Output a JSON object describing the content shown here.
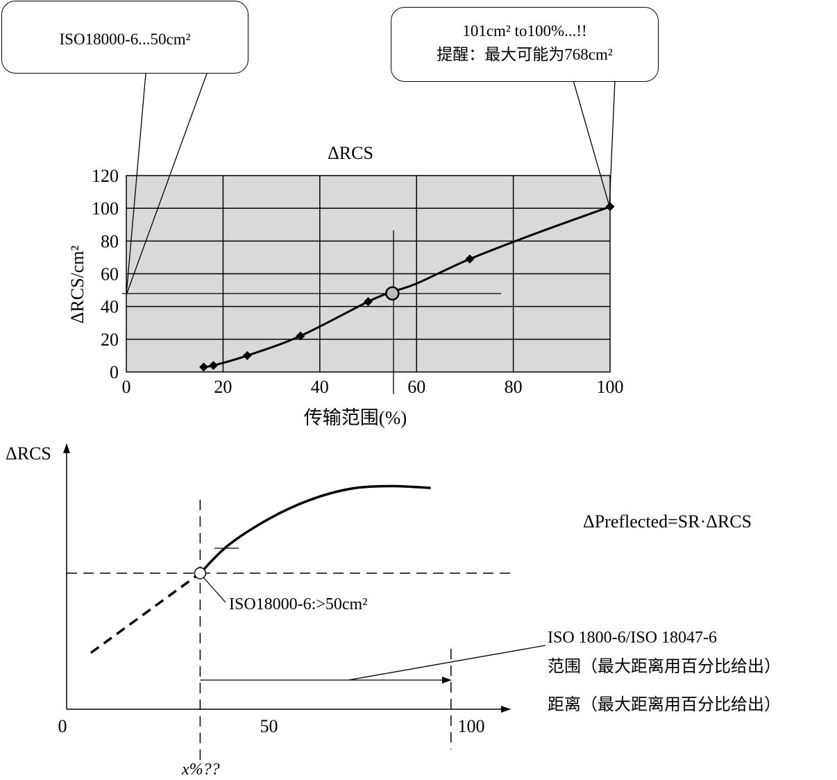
{
  "top_chart": {
    "title": "ΔRCS",
    "ylabel": "ΔRCS/cm²",
    "xlabel": "传输范围(%)",
    "callout_left": "ISO18000-6...50cm²",
    "callout_right_line1": "101cm² to100%...!!",
    "callout_right_line2": "提醒：最大可能为768cm²"
  },
  "bottom_chart": {
    "ylabel": "ΔRCS",
    "formula": "ΔPreflected=SR·ΔRCS",
    "point_label": "ISO18000-6:>50cm²",
    "x_marker_label": "x%??",
    "legend_line1": "ISO 1800-6/ISO 18047-6",
    "legend_line2": "范围（最大距离用百分比给出）",
    "legend_line3": "距离（最大距离用百分比给出）"
  },
  "chart_data": [
    {
      "type": "line",
      "title": "ΔRCS",
      "xlabel": "传输范围(%)",
      "ylabel": "ΔRCS/cm²",
      "xlim": [
        0,
        100
      ],
      "ylim": [
        0,
        120
      ],
      "xticks": [
        0,
        20,
        40,
        60,
        80,
        100
      ],
      "yticks": [
        0,
        20,
        40,
        60,
        80,
        100,
        120
      ],
      "grid": true,
      "series": [
        {
          "x": [
            16,
            18,
            25,
            36,
            50,
            71,
            100
          ],
          "y": [
            3,
            4,
            10,
            22,
            43,
            69,
            101
          ]
        }
      ],
      "curve": {
        "x": [
          16,
          18,
          25,
          36,
          50,
          55,
          60,
          71,
          85,
          100
        ],
        "y": [
          3,
          4,
          10,
          22,
          43,
          49,
          54,
          69,
          85,
          101
        ]
      },
      "highlight_point": {
        "x": 55,
        "y": 48
      },
      "marker_color": "#000000",
      "plot_background": "#d9d9d9"
    },
    {
      "type": "line",
      "xticks": [
        0,
        50,
        100
      ],
      "xlim": [
        0,
        100
      ],
      "curve_x": [
        33,
        40,
        50,
        60,
        70,
        80,
        90
      ],
      "curve_y": [
        0.0,
        0.3,
        0.58,
        0.78,
        0.9,
        0.93,
        0.91
      ],
      "dashed_x": [
        6,
        33
      ],
      "dashed_y": [
        -0.85,
        0.0
      ],
      "marker_x": 33,
      "range_end_x": 95
    }
  ]
}
